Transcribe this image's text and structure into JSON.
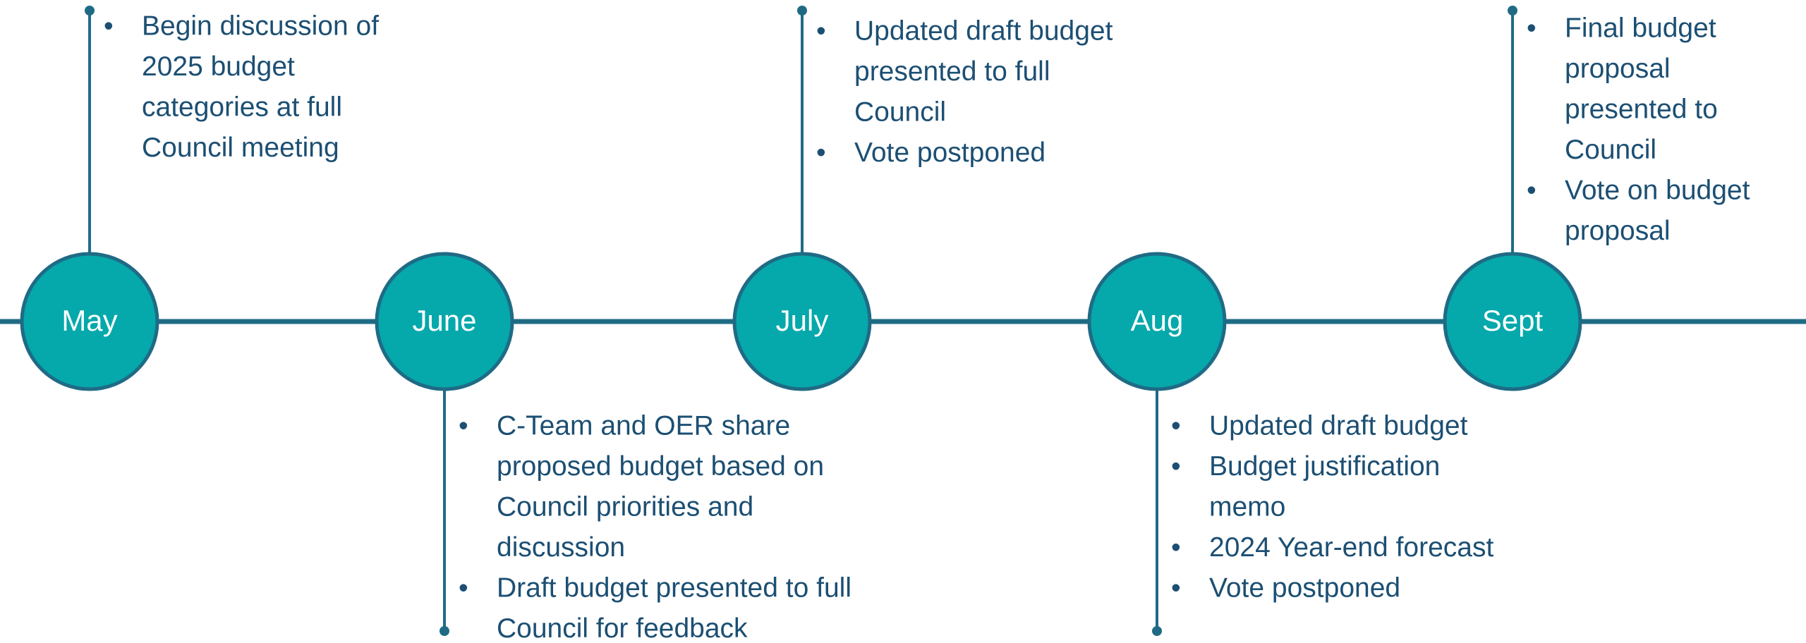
{
  "nodes": [
    {
      "label": "May",
      "position": "top",
      "items": [
        [
          "Begin discussion of",
          "2025 budget",
          "categories at full",
          "Council meeting"
        ]
      ]
    },
    {
      "label": "June",
      "position": "bottom",
      "items": [
        [
          "C-Team and OER share",
          "proposed budget based on",
          "Council priorities and",
          "discussion"
        ],
        [
          "Draft budget presented to full",
          "Council for feedback"
        ]
      ]
    },
    {
      "label": "July",
      "position": "top",
      "items": [
        [
          "Updated draft budget",
          "presented to full",
          "Council"
        ],
        [
          "Vote postponed"
        ]
      ]
    },
    {
      "label": "Aug",
      "position": "bottom",
      "items": [
        [
          "Updated draft budget"
        ],
        [
          "Budget justification",
          "memo"
        ],
        [
          "2024 Year-end forecast"
        ],
        [
          "Vote postponed"
        ]
      ]
    },
    {
      "label": "Sept",
      "position": "top",
      "items": [
        [
          "Final budget",
          "proposal",
          "presented to",
          "Council"
        ],
        [
          "Vote on budget",
          "proposal"
        ]
      ]
    }
  ]
}
